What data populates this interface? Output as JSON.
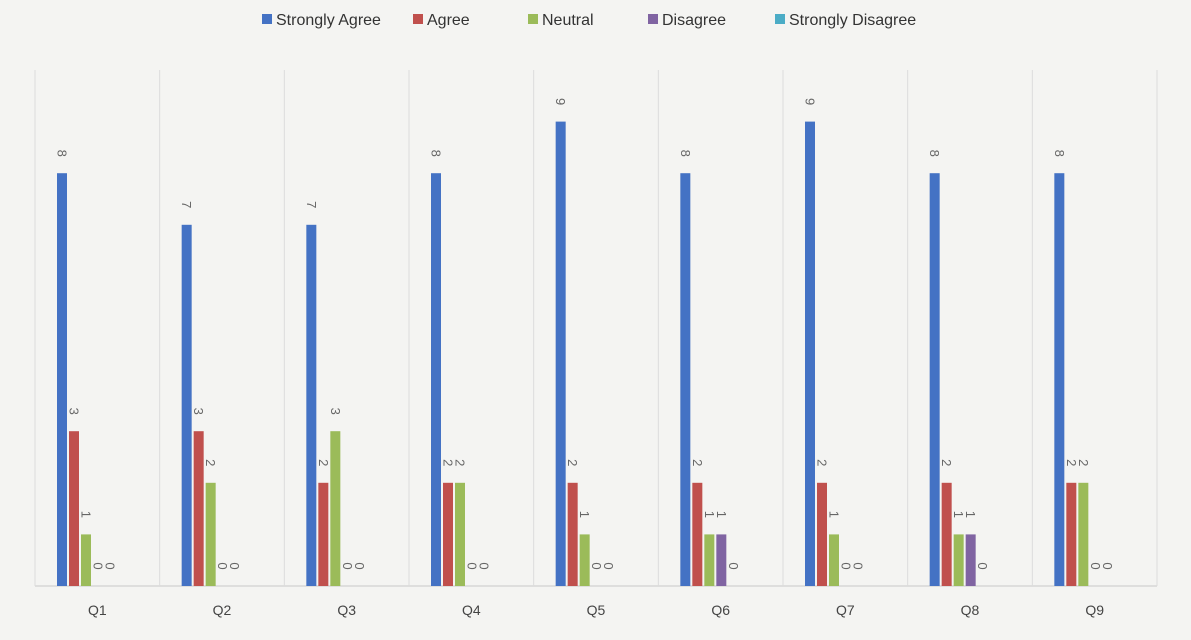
{
  "chart_data": {
    "type": "bar",
    "categories": [
      "Q1",
      "Q2",
      "Q3",
      "Q4",
      "Q5",
      "Q6",
      "Q7",
      "Q8",
      "Q9"
    ],
    "series": [
      {
        "name": "Strongly Agree",
        "color": "#4472C4",
        "values": [
          8,
          7,
          7,
          8,
          9,
          8,
          9,
          8,
          8
        ]
      },
      {
        "name": "Agree",
        "color": "#C0504D",
        "values": [
          3,
          3,
          2,
          2,
          2,
          2,
          2,
          2,
          2
        ]
      },
      {
        "name": "Neutral",
        "color": "#9BBB59",
        "values": [
          1,
          2,
          3,
          2,
          1,
          1,
          1,
          1,
          2
        ]
      },
      {
        "name": "Disagree",
        "color": "#8064A2",
        "values": [
          0,
          0,
          0,
          0,
          0,
          1,
          0,
          1,
          0
        ]
      },
      {
        "name": "Strongly Disagree",
        "color": "#4BACC6",
        "values": [
          0,
          0,
          0,
          0,
          0,
          0,
          0,
          0,
          0
        ]
      }
    ],
    "ylim": [
      0,
      10
    ],
    "grid": "vertical category separators",
    "legend_position": "top",
    "data_labels": "rotated 90deg above each bar",
    "title": "",
    "xlabel": "",
    "ylabel": ""
  }
}
